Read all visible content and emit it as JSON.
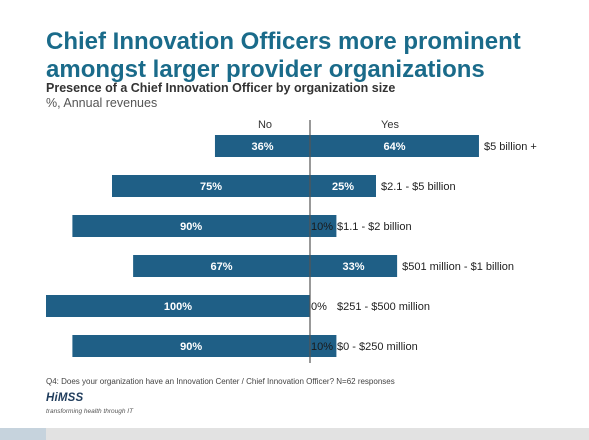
{
  "header": {
    "title_line1": "Chief Innovation Officers more prominent",
    "title_line2": "amongst larger provider organizations",
    "subtitle": "Presence of a Chief Innovation Officer by organization size",
    "units": "%, Annual revenues"
  },
  "chart_data": {
    "type": "bar",
    "orientation": "horizontal-diverging",
    "categories": [
      "$5 billion +",
      "$2.1 - $5 billion",
      "$1.1 - $2 billion",
      "$501 million - $1 billion",
      "$251 - $500 million",
      "$0 - $250 million"
    ],
    "series": [
      {
        "name": "No",
        "values": [
          36,
          75,
          90,
          67,
          100,
          90
        ],
        "labels": [
          "36%",
          "75%",
          "90%",
          "67%",
          "100%",
          "90%"
        ]
      },
      {
        "name": "Yes",
        "values": [
          64,
          25,
          10,
          33,
          0,
          10
        ],
        "labels": [
          "64%",
          "25%",
          "10%",
          "33%",
          "0%",
          "10%"
        ]
      }
    ],
    "xlim": [
      0,
      100
    ],
    "bar_color": "#1f5f86",
    "label_color": "#ffffff",
    "axis_color": "#555555",
    "grid": false
  },
  "footnote": "Q4: Does your organization have an Innovation Center / Chief Innovation Officer? N=62 responses",
  "logo": {
    "name": "HiMSS",
    "tagline": "transforming health through IT"
  }
}
